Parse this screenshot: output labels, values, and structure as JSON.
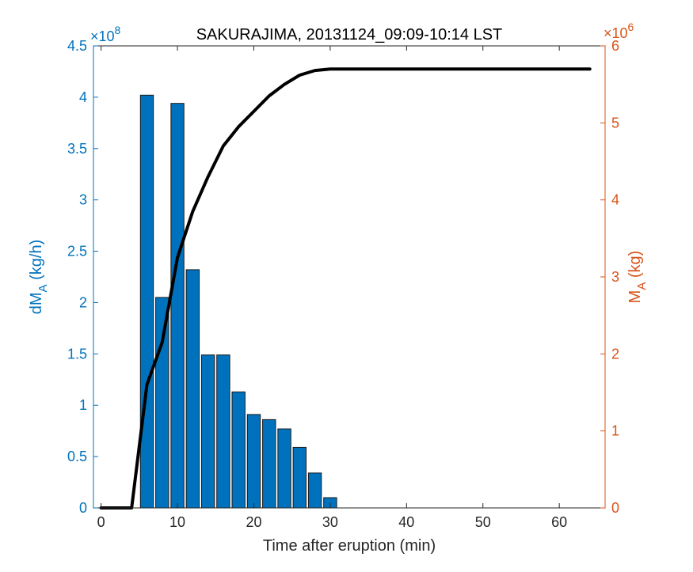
{
  "chart_data": {
    "type": "bar",
    "title": "SAKURAJIMA, 20131124_09:09-10:14 LST",
    "xlabel": "Time after eruption (min)",
    "xlim": [
      -1,
      66
    ],
    "xticks": [
      0,
      10,
      20,
      30,
      40,
      50,
      60
    ],
    "grid": false,
    "left_axis": {
      "label_main": "dM",
      "label_sub": "A",
      "label_unit": " (kg/h)",
      "exponent_base": "×10",
      "exponent_power": "8",
      "ylim": [
        0,
        4.5
      ],
      "ticks": [
        0,
        0.5,
        1,
        1.5,
        2,
        2.5,
        3,
        3.5,
        4,
        4.5
      ],
      "tick_labels": [
        "0",
        "0.5",
        "1",
        "1.5",
        "2",
        "2.5",
        "3",
        "3.5",
        "4",
        "4.5"
      ],
      "color": "#0072BD"
    },
    "right_axis": {
      "label_main": "M",
      "label_sub": "A",
      "label_unit": " (kg)",
      "exponent_base": "×10",
      "exponent_power": "6",
      "ylim": [
        0,
        6
      ],
      "ticks": [
        0,
        1,
        2,
        3,
        4,
        5,
        6
      ],
      "tick_labels": [
        "0",
        "1",
        "2",
        "3",
        "4",
        "5",
        "6"
      ],
      "color": "#D95319"
    },
    "bars": {
      "name": "dM_A",
      "axis": "left",
      "color": "#0072BD",
      "width": 1.7,
      "x": [
        6,
        8,
        10,
        12,
        14,
        16,
        18,
        20,
        22,
        24,
        26,
        28,
        30
      ],
      "values": [
        4.02,
        2.05,
        3.94,
        2.32,
        1.49,
        1.49,
        1.13,
        0.91,
        0.86,
        0.77,
        0.59,
        0.34,
        0.1
      ]
    },
    "line": {
      "name": "M_A",
      "axis": "right",
      "color": "#000000",
      "x": [
        0,
        4,
        6,
        8,
        10,
        12,
        14,
        16,
        18,
        20,
        22,
        24,
        26,
        28,
        30,
        32,
        64
      ],
      "values": [
        0,
        0,
        1.6,
        2.15,
        3.25,
        3.85,
        4.3,
        4.7,
        4.95,
        5.15,
        5.35,
        5.5,
        5.62,
        5.68,
        5.7,
        5.7,
        5.7
      ]
    }
  }
}
